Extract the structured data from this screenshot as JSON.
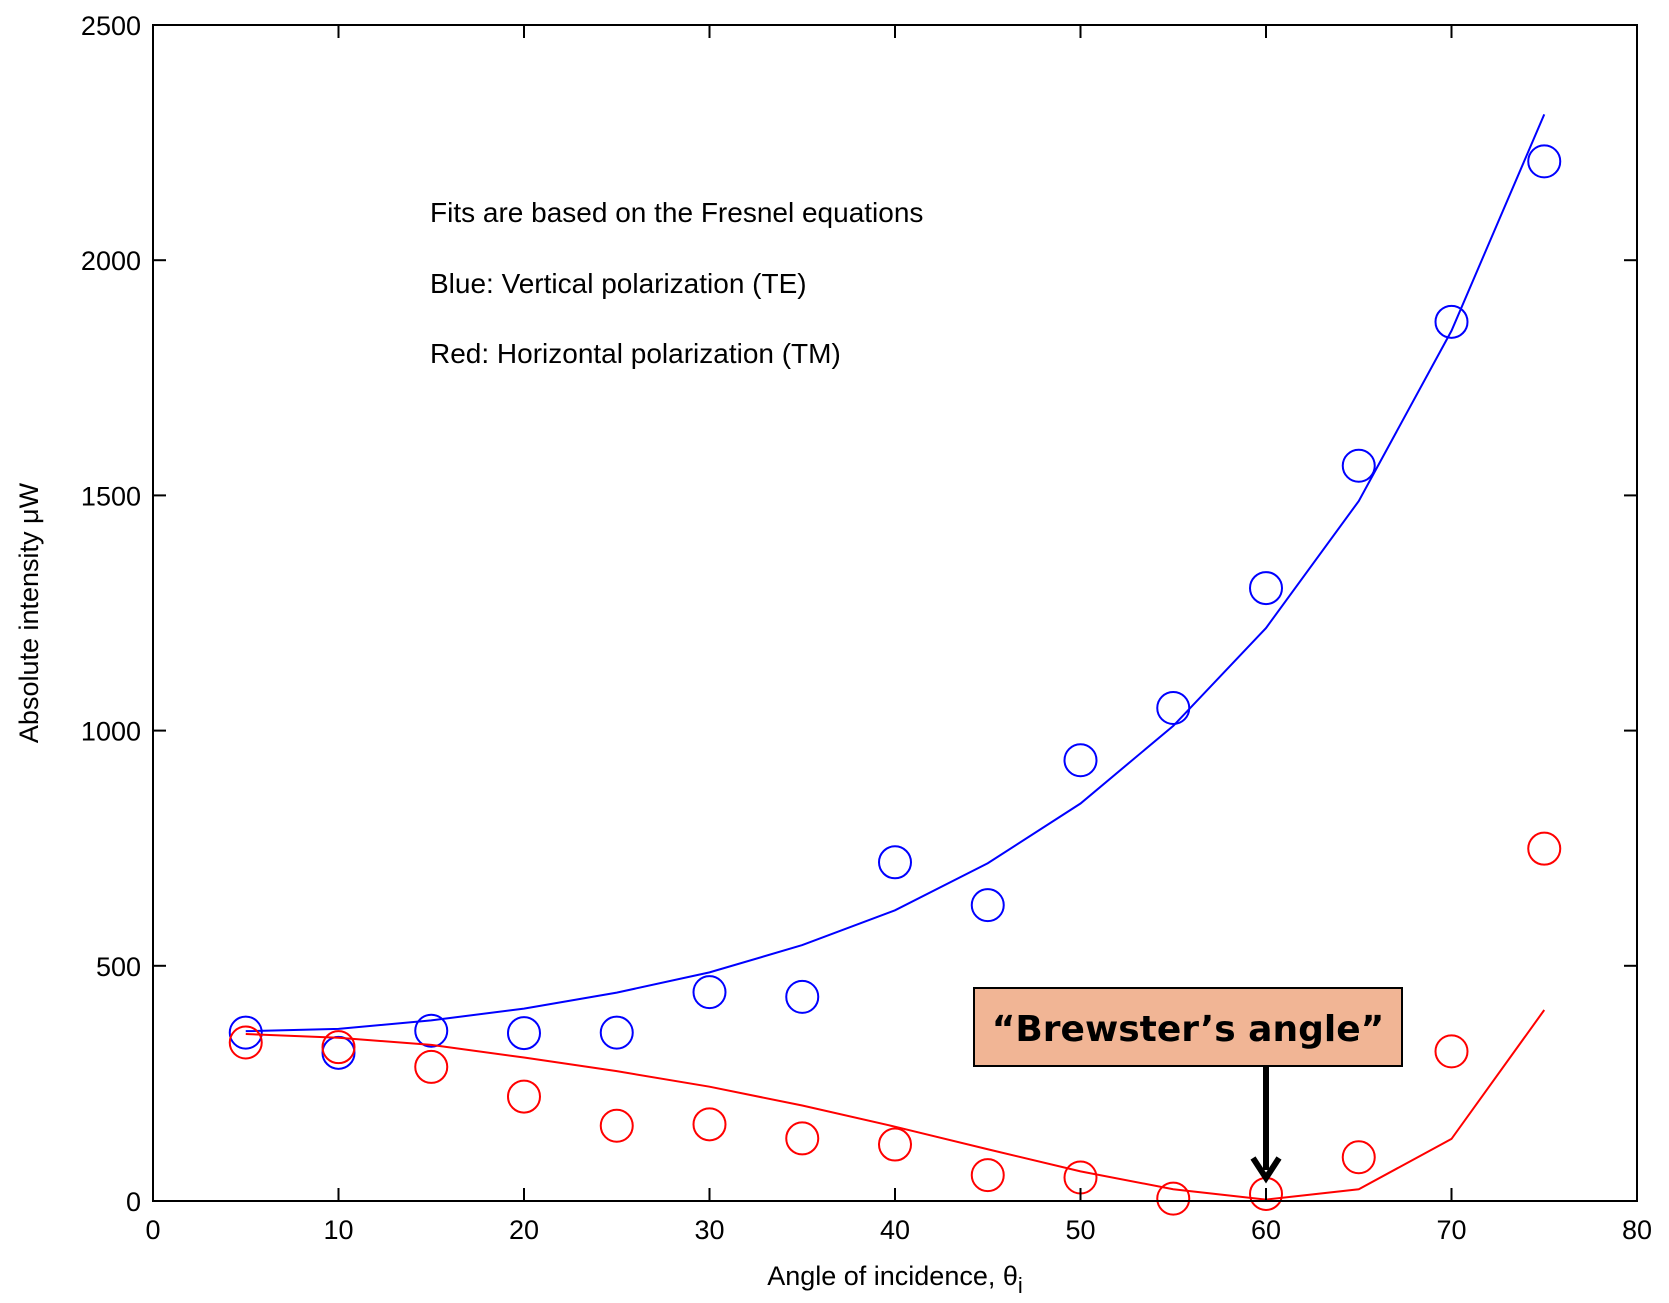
{
  "chart_data": {
    "type": "scatter",
    "title": "",
    "xlabel": "Angle of incidence, θ",
    "xlabel_subscript": "i",
    "ylabel": "Absolute intensity μW",
    "xlim": [
      0,
      80
    ],
    "ylim": [
      0,
      2500
    ],
    "x_ticks": [
      0,
      10,
      20,
      30,
      40,
      50,
      60,
      70,
      80
    ],
    "y_ticks": [
      0,
      500,
      1000,
      1500,
      2000,
      2500
    ],
    "grid": false,
    "annotations": [
      "Fits are based on the Fresnel equations",
      "Blue: Vertical polarization (TE)",
      "Red: Horizontal polarization (TM)"
    ],
    "callout": {
      "text": "“Brewster’s angle”",
      "points_to_x": 60,
      "fill": "#f1b595",
      "arrow_color": "#000000"
    },
    "series": [
      {
        "color": "#0000ff",
        "marker": "circle",
        "x": [
          5,
          10,
          15,
          20,
          25,
          30,
          35,
          40,
          45,
          50,
          55,
          60,
          65,
          70,
          75
        ],
        "y": [
          358,
          315,
          362,
          357,
          358,
          444,
          434,
          720,
          629,
          937,
          1048,
          1303,
          1563,
          1869,
          2210
        ]
      },
      {
        "color": "#0000ff",
        "type": "line",
        "x": [
          5,
          10,
          15,
          20,
          25,
          30,
          35,
          40,
          45,
          50,
          55,
          60,
          65,
          70,
          75
        ],
        "y": [
          361,
          366,
          384,
          409,
          443,
          486,
          544,
          618,
          718,
          845,
          1010,
          1218,
          1488,
          1850,
          2310
        ]
      },
      {
        "color": "#ff0000",
        "marker": "circle",
        "x": [
          5,
          10,
          15,
          20,
          25,
          30,
          35,
          40,
          45,
          50,
          55,
          60,
          65,
          70,
          75
        ],
        "y": [
          337,
          327,
          285,
          222,
          160,
          163,
          133,
          120,
          55,
          50,
          5,
          15,
          93,
          318,
          749
        ]
      },
      {
        "color": "#ff0000",
        "type": "line",
        "x": [
          5,
          10,
          15,
          20,
          25,
          30,
          35,
          40,
          45,
          50,
          55,
          60,
          65,
          70,
          75
        ],
        "y": [
          355,
          347,
          332,
          305,
          276,
          243,
          203,
          158,
          110,
          63,
          25,
          3,
          25,
          132,
          406
        ]
      }
    ]
  }
}
